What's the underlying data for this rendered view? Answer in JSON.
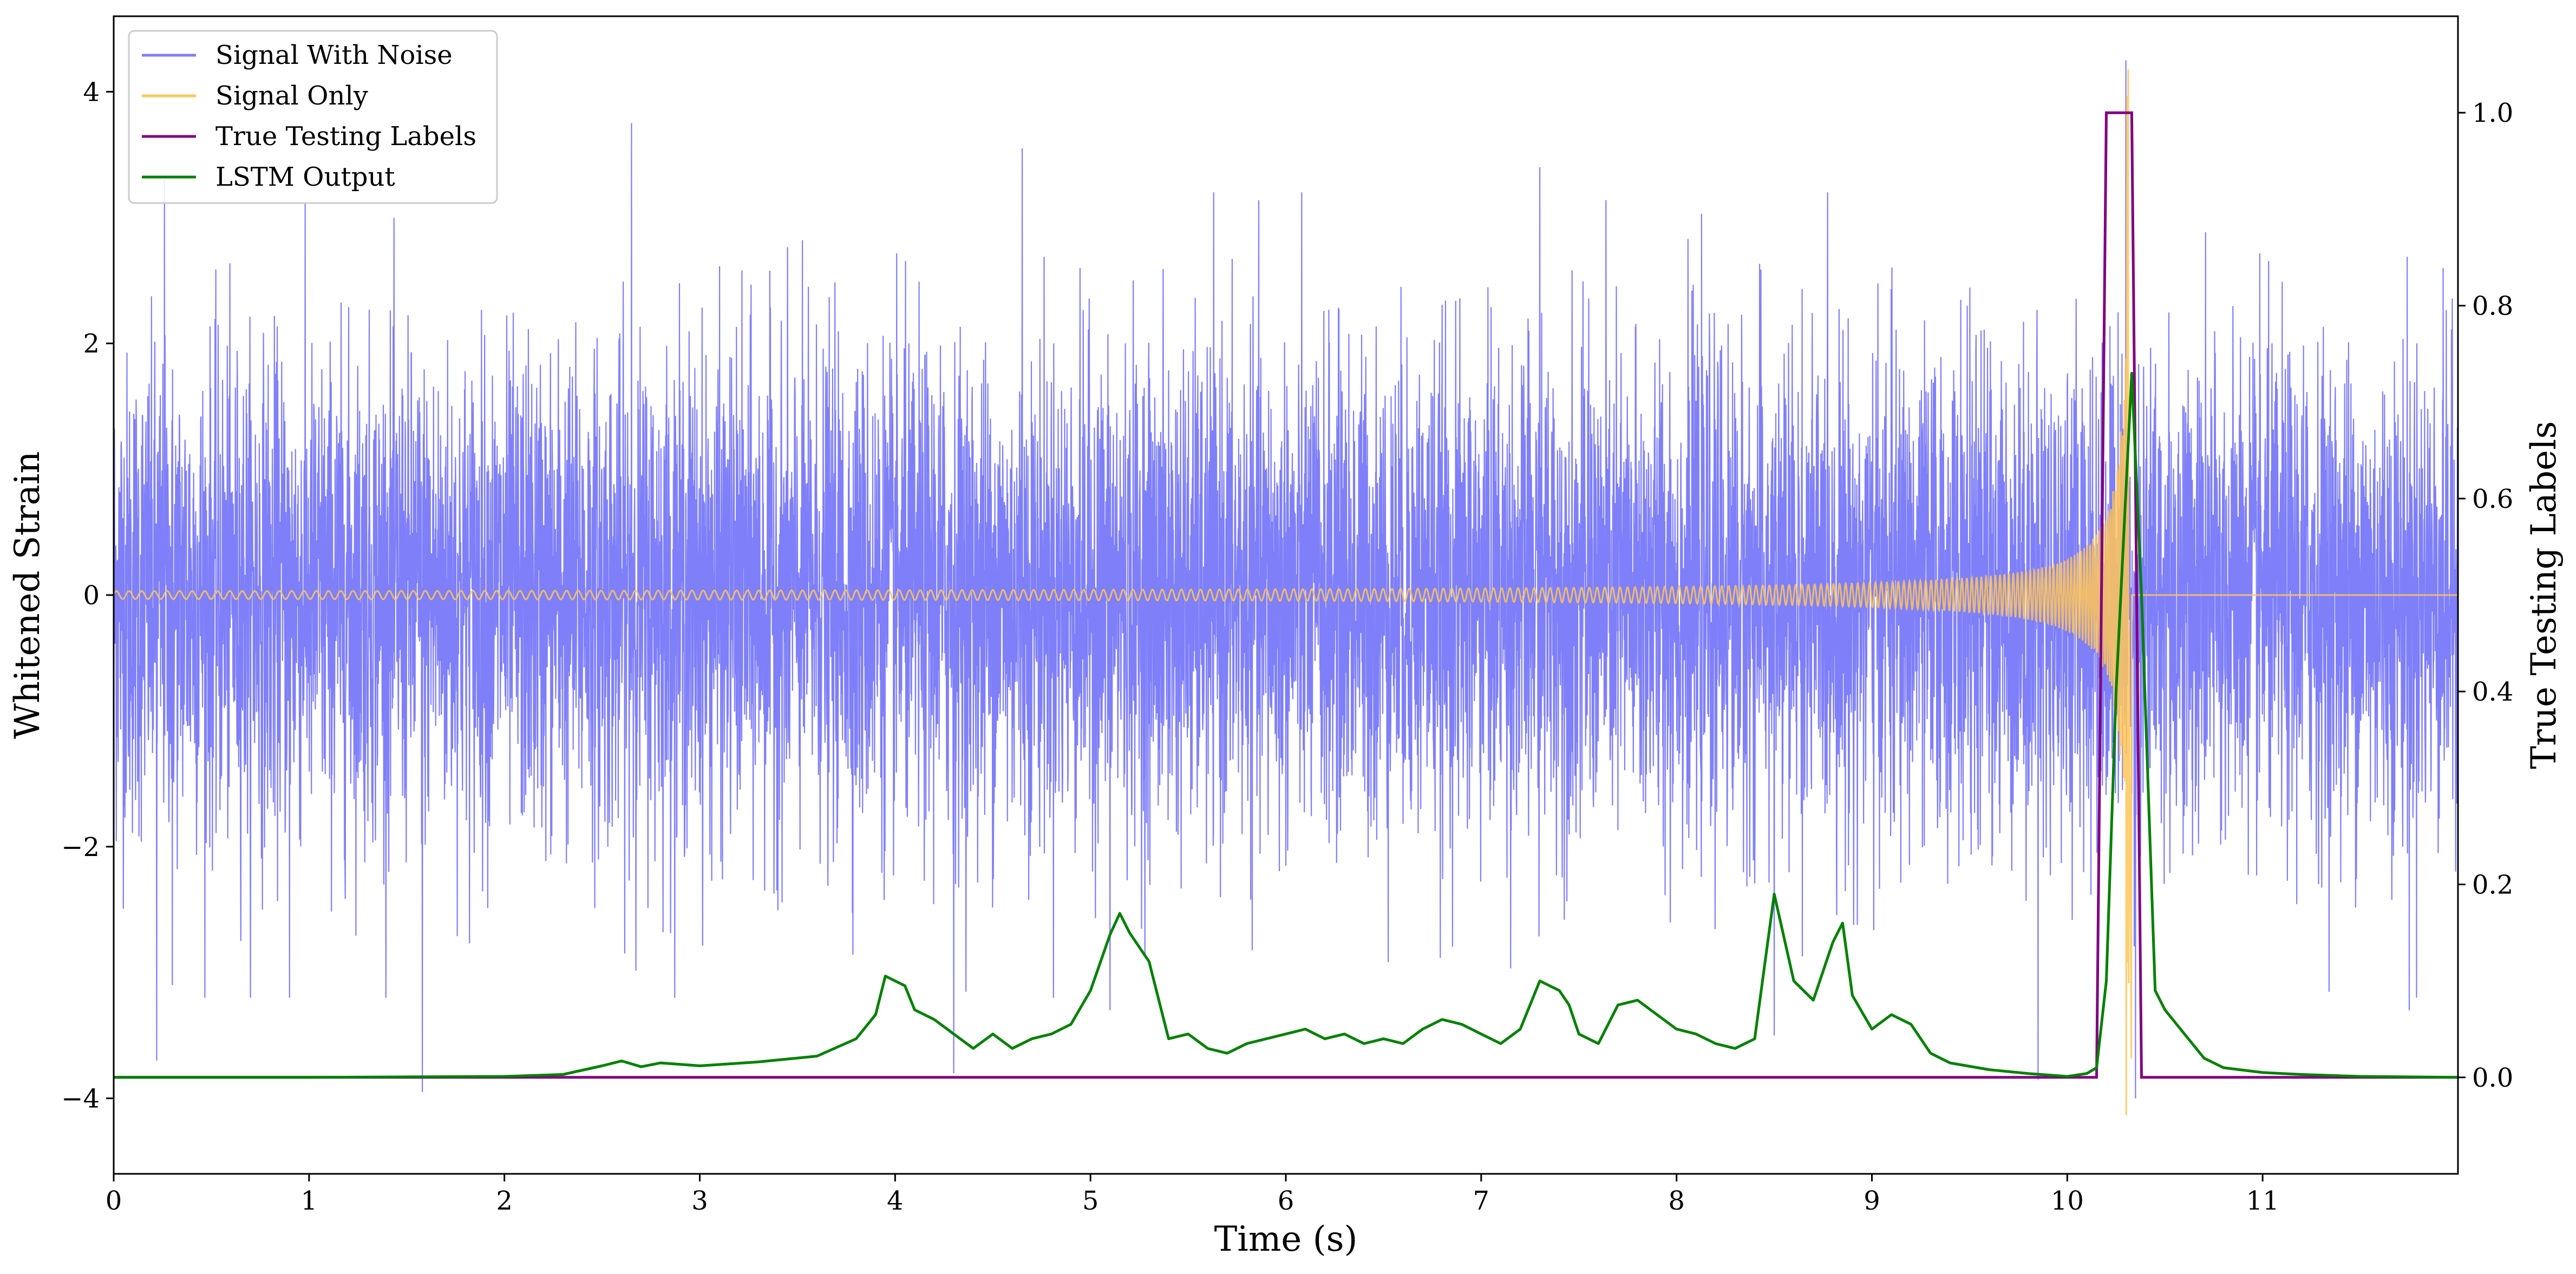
{
  "chart_data": {
    "type": "line",
    "xlabel": "Time (s)",
    "ylabel": "Whitened Strain",
    "y2label": "True Testing Labels",
    "xlim": [
      0,
      12.0
    ],
    "ylim": [
      -4.6,
      4.6
    ],
    "y2lim": [
      -0.1,
      1.1
    ],
    "x_ticks": [
      "0",
      "1",
      "2",
      "3",
      "4",
      "5",
      "6",
      "7",
      "8",
      "9",
      "10",
      "11"
    ],
    "y_ticks": [
      "−4",
      "−2",
      "0",
      "2",
      "4"
    ],
    "y2_ticks": [
      "0.0",
      "0.2",
      "0.4",
      "0.6",
      "0.8",
      "1.0"
    ],
    "legend_position": "top-left",
    "grid": false,
    "series": [
      {
        "name": "Signal With Noise",
        "axis": "left",
        "color": "#7f7ff9",
        "description_values": "dense noise, amplitude roughly ±2.5, spikes to ±4",
        "spikes": [
          {
            "x": 0.22,
            "y": -3.7
          },
          {
            "x": 0.26,
            "y": 3.3
          },
          {
            "x": 0.3,
            "y": -3.1
          },
          {
            "x": 0.9,
            "y": -3.2
          },
          {
            "x": 1.58,
            "y": -3.95
          },
          {
            "x": 2.65,
            "y": 3.75
          },
          {
            "x": 4.3,
            "y": -3.8
          },
          {
            "x": 4.65,
            "y": 3.55
          },
          {
            "x": 5.1,
            "y": -3.3
          },
          {
            "x": 7.3,
            "y": 3.4
          },
          {
            "x": 8.5,
            "y": -3.5
          },
          {
            "x": 9.85,
            "y": -3.85
          },
          {
            "x": 10.3,
            "y": 4.25
          },
          {
            "x": 10.35,
            "y": -4.0
          },
          {
            "x": 11.75,
            "y": -3.3
          }
        ]
      },
      {
        "name": "Signal Only",
        "axis": "left",
        "color": "#ffc658",
        "chirp_end": 10.33,
        "chirp_peak": 4.25
      },
      {
        "name": "True Testing Labels",
        "axis": "right",
        "color": "#800080",
        "x": [
          0,
          10.15,
          10.2,
          10.33,
          10.38,
          12.0
        ],
        "y": [
          0,
          0,
          1,
          1,
          0,
          0
        ]
      },
      {
        "name": "LSTM Output",
        "axis": "right",
        "color": "#008000",
        "x": [
          0,
          1.0,
          2.0,
          2.3,
          2.5,
          2.6,
          2.7,
          2.8,
          3.0,
          3.3,
          3.6,
          3.8,
          3.9,
          3.95,
          4.05,
          4.1,
          4.2,
          4.3,
          4.4,
          4.5,
          4.6,
          4.7,
          4.8,
          4.9,
          5.0,
          5.1,
          5.15,
          5.2,
          5.3,
          5.4,
          5.5,
          5.6,
          5.7,
          5.8,
          5.9,
          6.0,
          6.1,
          6.2,
          6.3,
          6.4,
          6.5,
          6.6,
          6.7,
          6.8,
          6.9,
          7.0,
          7.1,
          7.2,
          7.3,
          7.4,
          7.45,
          7.5,
          7.6,
          7.7,
          7.8,
          7.9,
          8.0,
          8.1,
          8.2,
          8.3,
          8.4,
          8.5,
          8.6,
          8.7,
          8.8,
          8.85,
          8.9,
          9.0,
          9.1,
          9.2,
          9.3,
          9.4,
          9.6,
          9.8,
          10.0,
          10.1,
          10.15,
          10.2,
          10.25,
          10.33,
          10.38,
          10.45,
          10.5,
          10.6,
          10.7,
          10.8,
          11.0,
          11.2,
          11.5,
          12.0
        ],
        "y": [
          0.0,
          0.0,
          0.001,
          0.003,
          0.012,
          0.017,
          0.011,
          0.015,
          0.012,
          0.016,
          0.022,
          0.04,
          0.065,
          0.105,
          0.095,
          0.07,
          0.06,
          0.045,
          0.03,
          0.045,
          0.03,
          0.04,
          0.045,
          0.055,
          0.09,
          0.148,
          0.17,
          0.15,
          0.12,
          0.04,
          0.045,
          0.03,
          0.025,
          0.035,
          0.04,
          0.045,
          0.05,
          0.04,
          0.045,
          0.035,
          0.04,
          0.035,
          0.05,
          0.06,
          0.055,
          0.045,
          0.035,
          0.05,
          0.1,
          0.09,
          0.075,
          0.045,
          0.035,
          0.075,
          0.08,
          0.065,
          0.05,
          0.045,
          0.035,
          0.03,
          0.04,
          0.19,
          0.1,
          0.08,
          0.14,
          0.16,
          0.085,
          0.05,
          0.065,
          0.055,
          0.025,
          0.015,
          0.008,
          0.004,
          0.001,
          0.004,
          0.01,
          0.1,
          0.4,
          0.73,
          0.5,
          0.09,
          0.07,
          0.045,
          0.02,
          0.01,
          0.005,
          0.003,
          0.001,
          0.0
        ]
      }
    ],
    "legend": [
      {
        "label": "Signal With Noise",
        "color": "#7f7ff9"
      },
      {
        "label": "Signal Only",
        "color": "#ffc658"
      },
      {
        "label": "True Testing Labels",
        "color": "#800080"
      },
      {
        "label": "LSTM Output",
        "color": "#008000"
      }
    ]
  }
}
